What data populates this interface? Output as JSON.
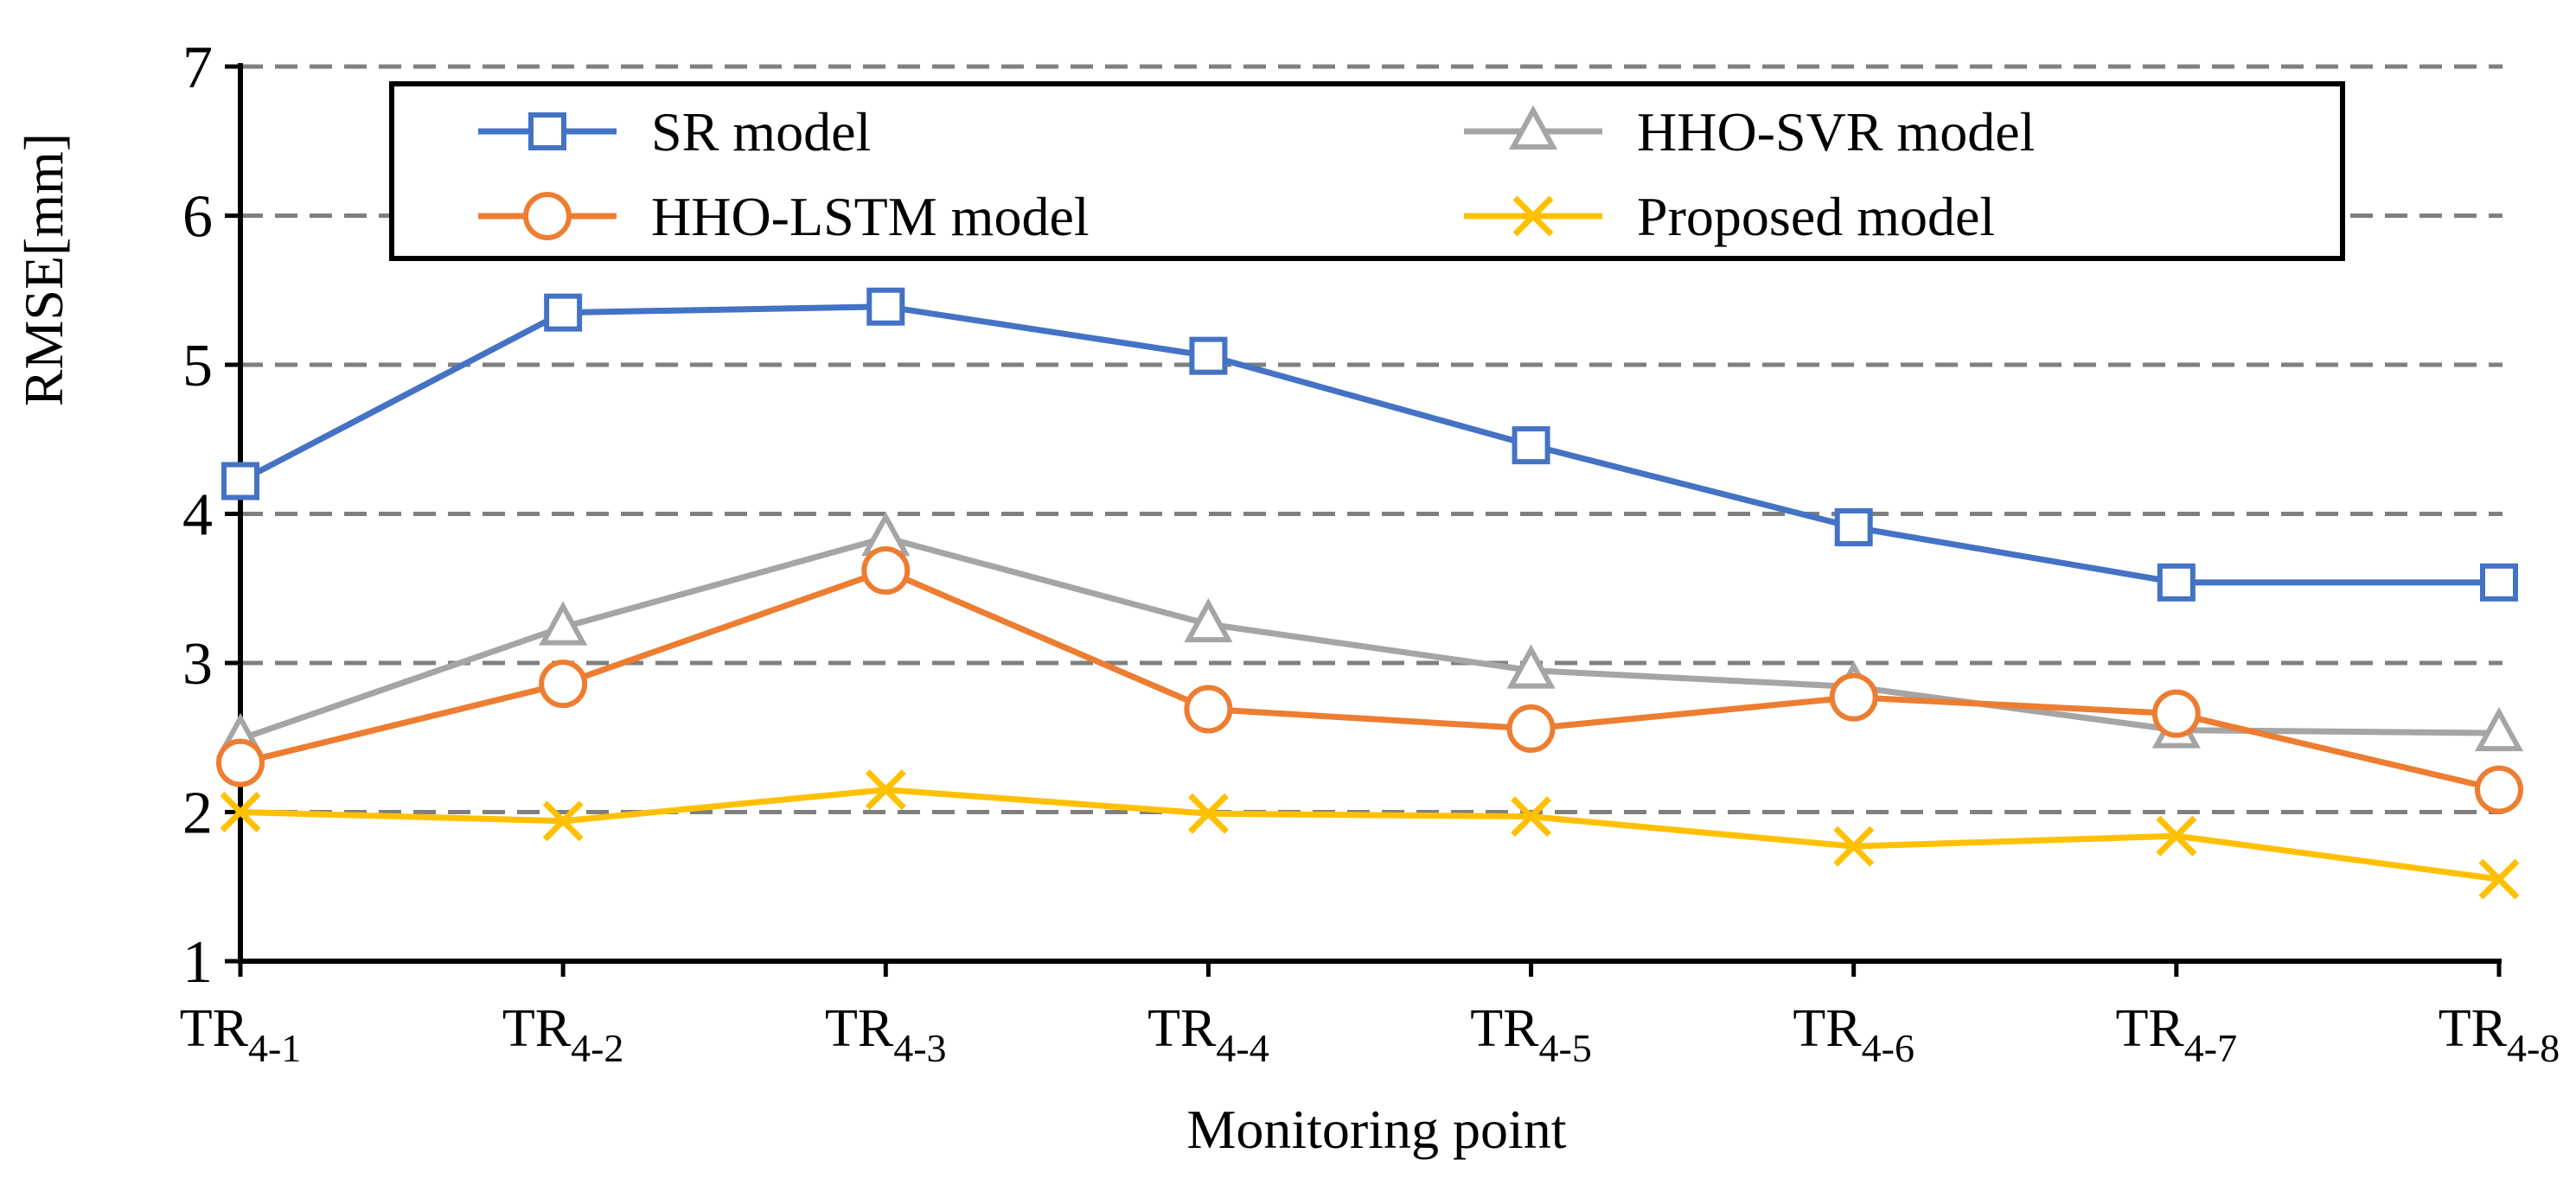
{
  "chart_data": {
    "type": "line",
    "title": "",
    "xlabel": "Monitoring point",
    "ylabel": "RMSE[mm]",
    "ylim": [
      1,
      7
    ],
    "yticks": [
      1,
      2,
      3,
      4,
      5,
      6,
      7
    ],
    "grid": "horizontal dashed",
    "legend_position": "top",
    "categories": [
      {
        "base": "TR",
        "sub": "4-1"
      },
      {
        "base": "TR",
        "sub": "4-2"
      },
      {
        "base": "TR",
        "sub": "4-3"
      },
      {
        "base": "TR",
        "sub": "4-4"
      },
      {
        "base": "TR",
        "sub": "4-5"
      },
      {
        "base": "TR",
        "sub": "4-6"
      },
      {
        "base": "TR",
        "sub": "4-7"
      },
      {
        "base": "TR",
        "sub": "4-8"
      }
    ],
    "series": [
      {
        "name": "SR model",
        "color": "#4472C4",
        "marker": "square",
        "values": [
          4.22,
          5.35,
          5.39,
          5.06,
          4.46,
          3.91,
          3.54,
          3.54
        ]
      },
      {
        "name": "HHO-SVR model",
        "color": "#A5A5A5",
        "marker": "triangle",
        "values": [
          2.49,
          3.24,
          3.84,
          3.26,
          2.95,
          2.84,
          2.55,
          2.53
        ]
      },
      {
        "name": "HHO-LSTM model",
        "color": "#ED7D31",
        "marker": "circle",
        "values": [
          2.33,
          2.86,
          3.62,
          2.69,
          2.56,
          2.77,
          2.66,
          2.15
        ]
      },
      {
        "name": "Proposed model",
        "color": "#FFC000",
        "marker": "x",
        "values": [
          2.0,
          1.94,
          2.15,
          1.99,
          1.97,
          1.77,
          1.84,
          1.55
        ]
      }
    ]
  }
}
